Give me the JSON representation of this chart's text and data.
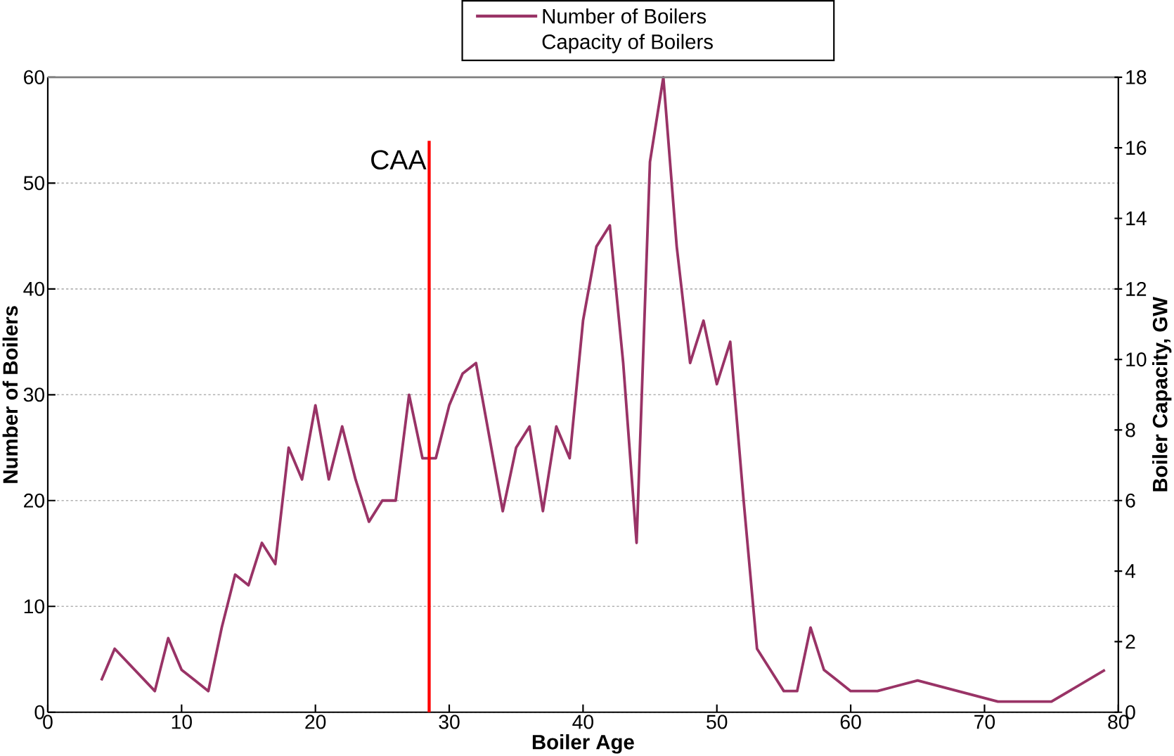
{
  "chart_data": {
    "type": "line",
    "xlabel": "Boiler Age",
    "ylabel": "Number of Boilers",
    "y2label": "Boiler Capacity, GW",
    "xlim": [
      0,
      80
    ],
    "xticks": [
      0,
      10,
      20,
      30,
      40,
      50,
      60,
      70,
      80
    ],
    "ylim": [
      0,
      60
    ],
    "yticks": [
      0,
      10,
      20,
      30,
      40,
      50,
      60
    ],
    "y2lim": [
      0,
      18
    ],
    "y2ticks": [
      0,
      2,
      4,
      6,
      8,
      10,
      12,
      14,
      16,
      18
    ],
    "grid": "y",
    "legend": "top",
    "line_style": "solid",
    "marker": "none",
    "ref_lines": [
      {
        "axis": "x",
        "value": 28.5,
        "label": "CAA",
        "color": "#ff0000"
      }
    ],
    "series": [
      {
        "name": "Number of Boilers",
        "color": "#993366",
        "axis": "y",
        "x": [
          4,
          5,
          8,
          9,
          10,
          11,
          12,
          13,
          14,
          15,
          16,
          17,
          18,
          19,
          20,
          21,
          22,
          23,
          24,
          25,
          26,
          27,
          28,
          29,
          30,
          31,
          32,
          34,
          35,
          36,
          37,
          38,
          39,
          40,
          41,
          42,
          43,
          44,
          45,
          46,
          47,
          48,
          49,
          50,
          51,
          52,
          53,
          54,
          55,
          56,
          57,
          58,
          59,
          60,
          62,
          65,
          68,
          71,
          75,
          79
        ],
        "values": [
          3,
          6,
          2,
          7,
          4,
          3,
          2,
          8,
          13,
          12,
          16,
          14,
          25,
          22,
          29,
          22,
          27,
          22,
          18,
          20,
          20,
          30,
          24,
          24,
          29,
          32,
          33,
          19,
          25,
          27,
          19,
          27,
          24,
          37,
          44,
          46,
          33,
          16,
          52,
          60,
          44,
          33,
          37,
          31,
          35,
          20,
          6,
          4,
          2,
          2,
          8,
          4,
          3,
          2,
          2,
          3,
          2,
          1,
          1,
          4
        ]
      }
    ],
    "annotations": [
      "Capacity of Boilers"
    ]
  }
}
